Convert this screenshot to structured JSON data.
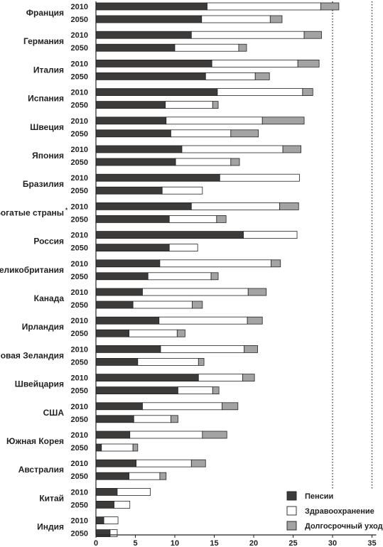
{
  "chart_data": {
    "type": "bar",
    "orientation": "horizontal",
    "stacked": true,
    "title": "",
    "xlabel": "",
    "ylabel": "",
    "xlim": [
      0,
      35
    ],
    "xticks": [
      0,
      5,
      10,
      15,
      20,
      25,
      30,
      35
    ],
    "grid": "vertical dotted lines at 30 and 35",
    "legend_position": "bottom-right",
    "colors": {
      "Пенсии": "#3d3a3a",
      "Здравоохранение": "#ffffff",
      "Долгосрочный уход": "#a3a3a3"
    },
    "series_names": [
      "Пенсии",
      "Здравоохранение",
      "Долгосрочный уход"
    ],
    "groups": [
      {
        "country": "Франция",
        "rows": [
          {
            "year": "2010",
            "values": [
              14.1,
              14.4,
              2.3
            ]
          },
          {
            "year": "2050",
            "values": [
              13.4,
              8.7,
              1.5
            ]
          }
        ]
      },
      {
        "country": "Германия",
        "rows": [
          {
            "year": "2010",
            "values": [
              12.1,
              14.3,
              2.2
            ]
          },
          {
            "year": "2050",
            "values": [
              10.0,
              8.1,
              1.0
            ]
          }
        ]
      },
      {
        "country": "Италия",
        "rows": [
          {
            "year": "2010",
            "values": [
              14.7,
              10.9,
              2.7
            ]
          },
          {
            "year": "2050",
            "values": [
              13.9,
              6.3,
              1.8
            ]
          }
        ]
      },
      {
        "country": "Испания",
        "rows": [
          {
            "year": "2010",
            "values": [
              15.4,
              10.8,
              1.3
            ]
          },
          {
            "year": "2050",
            "values": [
              8.8,
              6.0,
              0.7
            ]
          }
        ]
      },
      {
        "country": "Швеция",
        "rows": [
          {
            "year": "2010",
            "values": [
              8.9,
              12.2,
              5.3
            ]
          },
          {
            "year": "2050",
            "values": [
              9.5,
              7.6,
              3.5
            ]
          }
        ]
      },
      {
        "country": "Япония",
        "rows": [
          {
            "year": "2010",
            "values": [
              10.9,
              12.8,
              2.3
            ]
          },
          {
            "year": "2050",
            "values": [
              10.1,
              7.0,
              1.1
            ]
          }
        ]
      },
      {
        "country": "Бразилия",
        "rows": [
          {
            "year": "2010",
            "values": [
              15.7,
              10.1,
              0
            ]
          },
          {
            "year": "2050",
            "values": [
              8.4,
              5.1,
              0
            ]
          }
        ]
      },
      {
        "country": "Богатые страны",
        "note": "*",
        "rows": [
          {
            "year": "2010",
            "values": [
              12.1,
              11.2,
              2.4
            ]
          },
          {
            "year": "2050",
            "values": [
              9.3,
              6.0,
              1.2
            ]
          }
        ]
      },
      {
        "country": "Россия",
        "rows": [
          {
            "year": "2010",
            "values": [
              18.7,
              6.8,
              0
            ]
          },
          {
            "year": "2050",
            "values": [
              9.3,
              3.6,
              0
            ]
          }
        ]
      },
      {
        "country": "Великобритания",
        "rows": [
          {
            "year": "2010",
            "values": [
              8.1,
              14.1,
              1.2
            ]
          },
          {
            "year": "2050",
            "values": [
              6.6,
              8.0,
              0.9
            ]
          }
        ]
      },
      {
        "country": "Канада",
        "rows": [
          {
            "year": "2010",
            "values": [
              5.9,
              13.4,
              2.3
            ]
          },
          {
            "year": "2050",
            "values": [
              4.7,
              7.5,
              1.3
            ]
          }
        ]
      },
      {
        "country": "Ирландия",
        "rows": [
          {
            "year": "2010",
            "values": [
              8.0,
              11.2,
              1.9
            ]
          },
          {
            "year": "2050",
            "values": [
              4.2,
              6.1,
              1.0
            ]
          }
        ]
      },
      {
        "country": "Новая Зеландия",
        "rows": [
          {
            "year": "2010",
            "values": [
              8.2,
              10.6,
              1.7
            ]
          },
          {
            "year": "2050",
            "values": [
              5.3,
              7.7,
              0.7
            ]
          }
        ]
      },
      {
        "country": "Швейцария",
        "rows": [
          {
            "year": "2010",
            "values": [
              13.0,
              5.6,
              1.5
            ]
          },
          {
            "year": "2050",
            "values": [
              10.4,
              4.4,
              0.8
            ]
          }
        ]
      },
      {
        "country": "США",
        "rows": [
          {
            "year": "2010",
            "values": [
              5.9,
              10.1,
              2.0
            ]
          },
          {
            "year": "2050",
            "values": [
              4.8,
              4.7,
              0.9
            ]
          }
        ]
      },
      {
        "country": "Южная Корея",
        "rows": [
          {
            "year": "2010",
            "values": [
              4.3,
              9.2,
              3.1
            ]
          },
          {
            "year": "2050",
            "values": [
              0.7,
              4.0,
              0.6
            ]
          }
        ]
      },
      {
        "country": "Австралия",
        "rows": [
          {
            "year": "2010",
            "values": [
              5.1,
              7.0,
              1.8
            ]
          },
          {
            "year": "2050",
            "values": [
              4.2,
              3.9,
              0.8
            ]
          }
        ]
      },
      {
        "country": "Китай",
        "rows": [
          {
            "year": "2010",
            "values": [
              2.7,
              4.2,
              0
            ]
          },
          {
            "year": "2050",
            "values": [
              2.3,
              2.0,
              0
            ]
          }
        ]
      },
      {
        "country": "Индия",
        "rows": [
          {
            "year": "2010",
            "values": [
              1.0,
              1.8,
              0
            ]
          },
          {
            "year": "2050",
            "values": [
              1.8,
              0.9,
              0
            ]
          }
        ]
      }
    ]
  }
}
